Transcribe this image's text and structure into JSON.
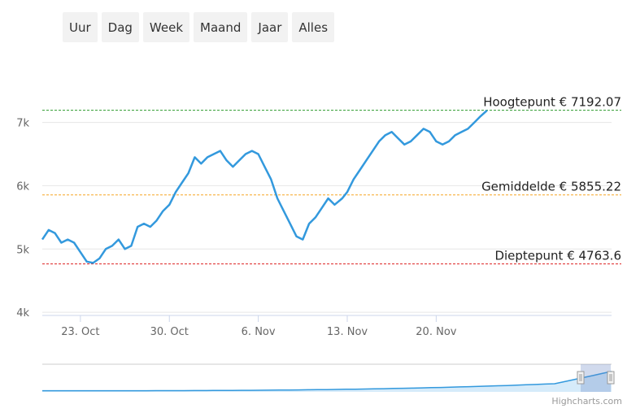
{
  "range_selector": {
    "buttons": [
      "Uur",
      "Dag",
      "Week",
      "Maand",
      "Jaar",
      "Alles"
    ]
  },
  "credits": "Highcharts.com",
  "colors": {
    "series": "#3399dd",
    "high_line": "#2e9b2e",
    "avg_line": "#f5a623",
    "low_line": "#dd2222",
    "navigator_fill": "#d6ebfa"
  },
  "chart_data": {
    "type": "line",
    "x_tick_labels": [
      "23. Oct",
      "30. Oct",
      "6. Nov",
      "13. Nov",
      "20. Nov"
    ],
    "y_tick_labels": [
      "4k",
      "5k",
      "6k",
      "7k"
    ],
    "ylim": [
      3950,
      7650
    ],
    "y_ticks": [
      4000,
      5000,
      6000,
      7000
    ],
    "x_range_days": [
      20.0,
      64.8
    ],
    "x_ticks_days": [
      23,
      30,
      37,
      44,
      51
    ],
    "plot_lines": [
      {
        "key": "high",
        "label": "Hoogtepunt € 7192.07",
        "value": 7192.07
      },
      {
        "key": "avg",
        "label": "Gemiddelde € 5855.22",
        "value": 5855.22
      },
      {
        "key": "low",
        "label": "Dieptepunt € 4763.6",
        "value": 4763.6
      }
    ],
    "series": [
      {
        "x": [
          20.0,
          20.5,
          21.0,
          21.5,
          22.0,
          22.5,
          23.0,
          23.5,
          24.0,
          24.5,
          25.0,
          25.5,
          26.0,
          26.5,
          27.0,
          27.5,
          28.0,
          28.5,
          29.0,
          29.5,
          30.0,
          30.5,
          31.0,
          31.5,
          32.0,
          32.5,
          33.0,
          33.5,
          34.0,
          34.5,
          35.0,
          35.5,
          36.0,
          36.5,
          37.0,
          37.5,
          38.0,
          38.5,
          39.0,
          39.5,
          40.0,
          40.5,
          41.0,
          41.5,
          42.0,
          42.5,
          43.0,
          43.3,
          43.6,
          44.0,
          44.5,
          45.0,
          45.5,
          46.0,
          46.5,
          47.0,
          47.5,
          48.0,
          48.5,
          49.0,
          49.5,
          50.0,
          50.5,
          51.0,
          51.5,
          52.0,
          52.5,
          53.0,
          53.5,
          54.0,
          54.5,
          55.0
        ],
        "y": [
          5150,
          5300,
          5250,
          5100,
          5150,
          5100,
          4950,
          4800,
          4780,
          4850,
          5000,
          5050,
          5150,
          5000,
          5050,
          5350,
          5400,
          5350,
          5450,
          5600,
          5700,
          5900,
          6050,
          6200,
          6450,
          6350,
          6450,
          6500,
          6550,
          6400,
          6300,
          6400,
          6500,
          6550,
          6500,
          6300,
          6100,
          5800,
          5600,
          5400,
          5200,
          5150,
          5400,
          5500,
          5650,
          5800,
          5700,
          5750,
          5800,
          5900,
          6100,
          6250,
          6400,
          6550,
          6700,
          6800,
          6850,
          6750,
          6650,
          6700,
          6800,
          6900,
          6850,
          6700,
          6650,
          6700,
          6800,
          6850,
          6900,
          7000,
          7100,
          7190
        ]
      }
    ]
  }
}
